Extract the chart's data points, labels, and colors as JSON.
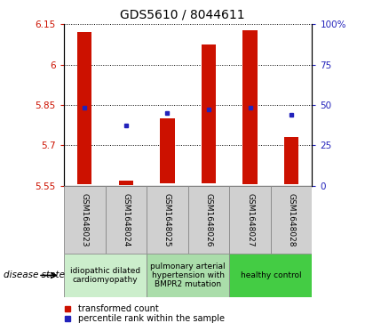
{
  "title": "GDS5610 / 8044611",
  "samples": [
    "GSM1648023",
    "GSM1648024",
    "GSM1648025",
    "GSM1648026",
    "GSM1648027",
    "GSM1648028"
  ],
  "bar_bottoms": [
    5.557,
    5.554,
    5.558,
    5.558,
    5.557,
    5.557
  ],
  "bar_tops": [
    6.122,
    5.568,
    5.8,
    6.075,
    6.128,
    5.73
  ],
  "blue_values": [
    5.84,
    5.773,
    5.82,
    5.832,
    5.84,
    5.812
  ],
  "ylim_left": [
    5.55,
    6.15
  ],
  "ylim_right": [
    0,
    100
  ],
  "yticks_left": [
    5.55,
    5.7,
    5.85,
    6.0,
    6.15
  ],
  "yticks_right": [
    0,
    25,
    50,
    75,
    100
  ],
  "ytick_labels_right": [
    "0",
    "25",
    "50",
    "75",
    "100%"
  ],
  "ytick_labels_left": [
    "5.55",
    "5.7",
    "5.85",
    "6",
    "6.15"
  ],
  "bar_color": "#cc1100",
  "blue_color": "#2222bb",
  "bar_width": 0.35,
  "groups": [
    {
      "label": "idiopathic dilated\ncardiomyopathy",
      "col_indices": [
        0,
        1
      ],
      "color": "#cceecc"
    },
    {
      "label": "pulmonary arterial\nhypertension with\nBMPR2 mutation",
      "col_indices": [
        2,
        3
      ],
      "color": "#aaddaa"
    },
    {
      "label": "healthy control",
      "col_indices": [
        4,
        5
      ],
      "color": "#44cc44"
    }
  ],
  "legend_red_label": "transformed count",
  "legend_blue_label": "percentile rank within the sample",
  "disease_state_label": "disease state",
  "sample_bg": "#d0d0d0",
  "grid_color": "#000000",
  "title_fontsize": 10,
  "tick_fontsize": 7.5,
  "sample_fontsize": 6.5,
  "group_fontsize": 6.5,
  "legend_fontsize": 7
}
